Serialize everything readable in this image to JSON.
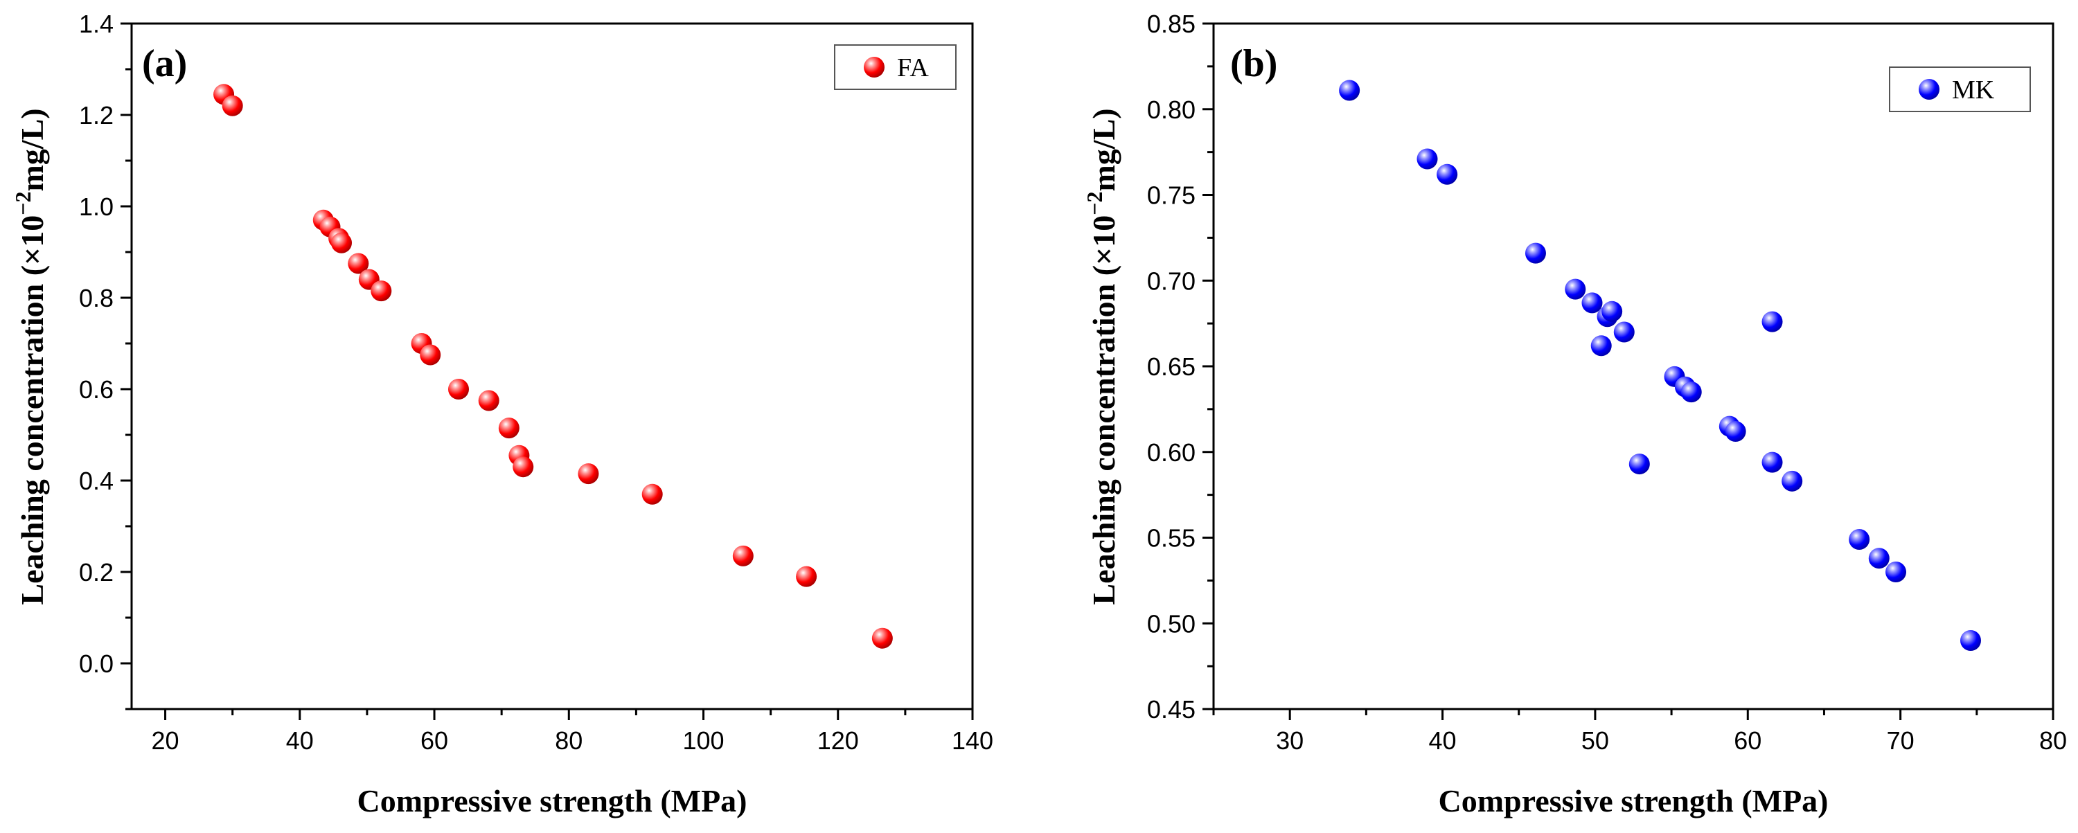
{
  "chart_data": [
    {
      "type": "scatter",
      "panel_label": "(a)",
      "xlabel": "Compressive strength (MPa)",
      "ylabel_main": "Leaching concentration (×10",
      "ylabel_exp": "−2",
      "ylabel_tail": "mg/L)",
      "xlim": [
        15,
        140
      ],
      "ylim": [
        -0.1,
        1.4
      ],
      "xticks": [
        20,
        40,
        60,
        80,
        100,
        120,
        140
      ],
      "yticks": [
        0.0,
        0.2,
        0.4,
        0.6,
        0.8,
        1.0,
        1.2,
        1.4
      ],
      "ytick_decimals": 1,
      "legend_position": "top-right",
      "grid": false,
      "series": [
        {
          "name": "FA",
          "color": "#ff0000",
          "points": [
            [
              28.7,
              1.245
            ],
            [
              30.0,
              1.22
            ],
            [
              43.5,
              0.97
            ],
            [
              44.5,
              0.955
            ],
            [
              45.8,
              0.93
            ],
            [
              46.2,
              0.92
            ],
            [
              48.7,
              0.875
            ],
            [
              50.3,
              0.84
            ],
            [
              52.1,
              0.815
            ],
            [
              58.1,
              0.7
            ],
            [
              59.4,
              0.675
            ],
            [
              63.6,
              0.6
            ],
            [
              68.1,
              0.575
            ],
            [
              71.1,
              0.515
            ],
            [
              72.6,
              0.455
            ],
            [
              73.2,
              0.43
            ],
            [
              82.9,
              0.415
            ],
            [
              92.4,
              0.37
            ],
            [
              105.9,
              0.235
            ],
            [
              115.3,
              0.19
            ],
            [
              126.6,
              0.055
            ]
          ]
        }
      ]
    },
    {
      "type": "scatter",
      "panel_label": "(b)",
      "xlabel": "Compressive strength (MPa)",
      "ylabel_main": "Leaching concentration (×10",
      "ylabel_exp": "−2",
      "ylabel_tail": "mg/L)",
      "xlim": [
        25,
        80
      ],
      "ylim": [
        0.45,
        0.85
      ],
      "xticks": [
        30,
        40,
        50,
        60,
        70,
        80
      ],
      "yticks": [
        0.45,
        0.5,
        0.55,
        0.6,
        0.65,
        0.7,
        0.75,
        0.8,
        0.85
      ],
      "ytick_decimals": 2,
      "legend_position": "top-right",
      "grid": false,
      "series": [
        {
          "name": "MK",
          "color": "#0000ff",
          "points": [
            [
              33.9,
              0.811
            ],
            [
              39.0,
              0.771
            ],
            [
              40.3,
              0.762
            ],
            [
              46.1,
              0.716
            ],
            [
              48.7,
              0.695
            ],
            [
              49.8,
              0.687
            ],
            [
              50.8,
              0.679
            ],
            [
              51.1,
              0.682
            ],
            [
              50.4,
              0.662
            ],
            [
              51.9,
              0.67
            ],
            [
              52.9,
              0.593
            ],
            [
              55.2,
              0.644
            ],
            [
              55.9,
              0.638
            ],
            [
              56.3,
              0.635
            ],
            [
              58.8,
              0.615
            ],
            [
              59.2,
              0.612
            ],
            [
              61.6,
              0.676
            ],
            [
              61.6,
              0.594
            ],
            [
              62.9,
              0.583
            ],
            [
              67.3,
              0.549
            ],
            [
              68.6,
              0.538
            ],
            [
              69.7,
              0.53
            ],
            [
              74.6,
              0.49
            ]
          ]
        }
      ]
    }
  ]
}
